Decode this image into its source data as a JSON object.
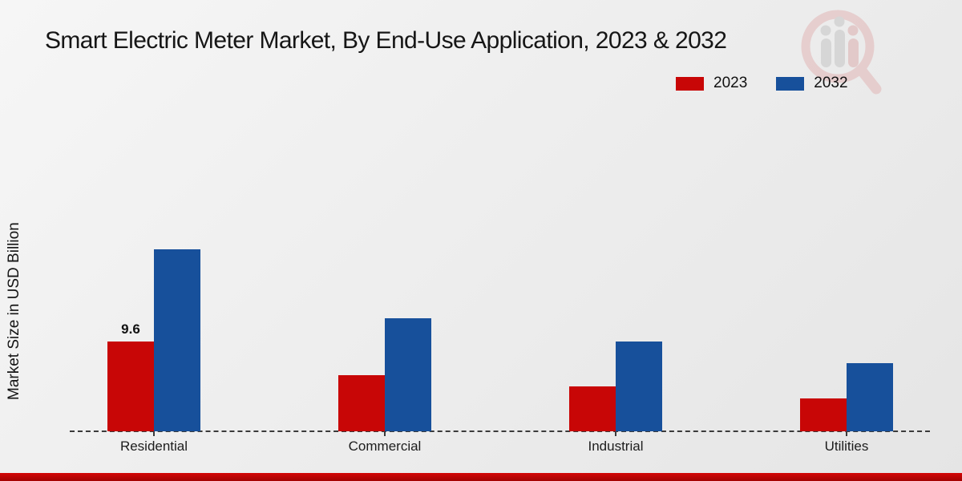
{
  "header": {
    "title": "Smart Electric Meter Market, By End-Use Application, 2023 & 2032"
  },
  "legend": {
    "position": "top-right",
    "items": [
      {
        "label": "2023",
        "color": "#c80606"
      },
      {
        "label": "2032",
        "color": "#17509b"
      }
    ]
  },
  "axes": {
    "y_label": "Market Size in USD Billion"
  },
  "watermark": {
    "icon": "magnifier-bars-logo"
  },
  "footer": {
    "accent_color_top": "#d40707",
    "accent_color_bottom": "#a30202"
  },
  "chart_data": {
    "type": "bar",
    "title": "Smart Electric Meter Market, By End-Use Application, 2023 & 2032",
    "categories": [
      "Residential",
      "Commercial",
      "Industrial",
      "Utilities"
    ],
    "series": [
      {
        "name": "2023",
        "color": "#c80606",
        "values": [
          9.6,
          6.0,
          4.8,
          3.5
        ],
        "data_labels": [
          "9.6",
          null,
          null,
          null
        ]
      },
      {
        "name": "2032",
        "color": "#17509b",
        "values": [
          19.5,
          12.1,
          9.6,
          7.3
        ],
        "data_labels": [
          null,
          null,
          null,
          null
        ]
      }
    ],
    "ylabel": "Market Size in USD Billion",
    "xlabel": "",
    "ylim": [
      0,
      20
    ],
    "grid": false,
    "legend_position": "top-right",
    "baseline_style": "dashed",
    "y_axis_ticks_visible": false
  }
}
